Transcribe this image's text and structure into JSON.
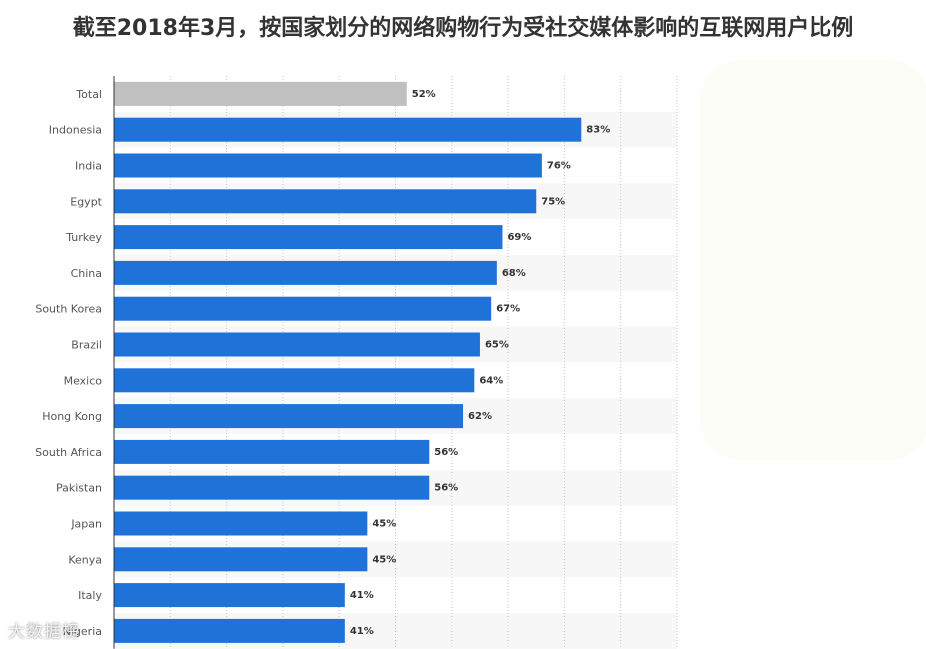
{
  "title": "截至2018年3月，按国家划分的网络购物行为受社交媒体影响的互联网用户比例",
  "watermark": "大数据榜",
  "chart_data": {
    "type": "bar",
    "orientation": "horizontal",
    "title": "截至2018年3月，按国家划分的网络购物行为受社交媒体影响的互联网用户比例",
    "xlabel": "",
    "ylabel": "",
    "unit": "%",
    "xlim": [
      0,
      100
    ],
    "grid": true,
    "categories": [
      "Total",
      "Indonesia",
      "India",
      "Egypt",
      "Turkey",
      "China",
      "South Korea",
      "Brazil",
      "Mexico",
      "Hong Kong",
      "South Africa",
      "Pakistan",
      "Japan",
      "Kenya",
      "Italy",
      "Nigeria"
    ],
    "values": [
      52,
      83,
      76,
      75,
      69,
      68,
      67,
      65,
      64,
      62,
      56,
      56,
      45,
      45,
      41,
      41
    ],
    "value_labels": [
      "52%",
      "83%",
      "76%",
      "75%",
      "69%",
      "68%",
      "67%",
      "65%",
      "64%",
      "62%",
      "56%",
      "56%",
      "45%",
      "45%",
      "41%",
      "41%"
    ],
    "colors": {
      "highlight": "#c0c0c0",
      "bar": "#1f72d8",
      "band": "#f7f7f7",
      "grid": "#c8c8c8",
      "axis": "#333333"
    }
  }
}
